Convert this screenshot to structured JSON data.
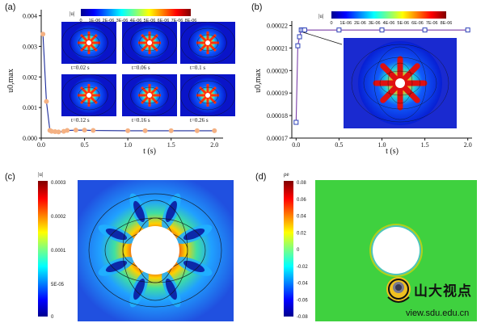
{
  "panels": {
    "a": {
      "label": "(a)",
      "ylabel": "u0,max",
      "xlabel": "t (s)",
      "yticks": [
        "0.000",
        "0.001",
        "0.002",
        "0.003",
        "0.004"
      ],
      "xticks": [
        "0.0",
        "0.5",
        "1.0",
        "1.5",
        "2.0"
      ],
      "colorbar": {
        "title": "|u|",
        "ticks": [
          "0",
          "1E-06",
          "2E-06",
          "3E-06",
          "4E-06",
          "5E-06",
          "6E-06",
          "7E-06",
          "8E-06"
        ]
      },
      "snapshots": [
        "t=0.02 s",
        "t=0.06 s",
        "t=0.1 s",
        "t=0.12 s",
        "t=0.16 s",
        "t=0.26 s"
      ]
    },
    "b": {
      "label": "(b)",
      "ylabel": "u0,max",
      "xlabel": "t (s)",
      "yticks": [
        "0.00017",
        "0.00018",
        "0.00019",
        "0.00020",
        "0.00021",
        "0.00022"
      ],
      "xticks": [
        "0.0",
        "0.5",
        "1.0",
        "1.5",
        "2.0"
      ],
      "colorbar": {
        "title": "|u|",
        "ticks": [
          "0",
          "1E-06",
          "2E-06",
          "3E-06",
          "4E-06",
          "5E-06",
          "6E-06",
          "7E-06",
          "8E-06"
        ]
      }
    },
    "c": {
      "label": "(c)",
      "colorbar": {
        "title": "|u|",
        "ticks": [
          "0.0003",
          "0.0002",
          "0.0001",
          "5E-05",
          "0"
        ]
      }
    },
    "d": {
      "label": "(d)",
      "colorbar": {
        "title": "ρe",
        "ticks": [
          "0.08",
          "0.06",
          "0.04",
          "0.02",
          "0",
          "-0.02",
          "-0.04",
          "-0.06",
          "-0.08"
        ]
      }
    }
  },
  "watermark": {
    "name": "山大视点",
    "url": "view.sdu.edu.cn"
  },
  "chart_data": [
    {
      "type": "line",
      "panel": "a",
      "xlabel": "t (s)",
      "ylabel": "u0,max",
      "xlim": [
        0,
        2.1
      ],
      "ylim": [
        0,
        0.0042
      ],
      "series": [
        {
          "x": [
            0.02,
            0.06,
            0.1,
            0.12,
            0.16,
            0.2,
            0.26,
            0.3,
            0.4,
            0.5,
            0.6,
            1.0,
            1.2,
            1.5,
            1.8,
            2.0
          ],
          "y": [
            0.0034,
            0.0012,
            0.00025,
            0.00022,
            0.00021,
            0.0002,
            0.00022,
            0.00025,
            0.00026,
            0.00026,
            0.00025,
            0.00024,
            0.00024,
            0.00024,
            0.00024,
            0.00024
          ]
        }
      ],
      "colors": {
        "line": "#1a2a9a",
        "marker": "#f4b183"
      }
    },
    {
      "type": "line",
      "panel": "b",
      "xlabel": "t (s)",
      "ylabel": "u0,max",
      "xlim": [
        -0.05,
        2.05
      ],
      "ylim": [
        0.00017,
        0.000222
      ],
      "series": [
        {
          "x": [
            0.0,
            0.02,
            0.04,
            0.06,
            0.08,
            0.1,
            0.5,
            1.0,
            1.5,
            2.0
          ],
          "y": [
            0.000177,
            0.000211,
            0.000215,
            0.000218,
            0.000218,
            0.000218,
            0.000218,
            0.000218,
            0.000218,
            0.000218
          ]
        }
      ],
      "colors": {
        "line": "#7b3fa8",
        "marker": "#2b3fb8"
      }
    }
  ]
}
